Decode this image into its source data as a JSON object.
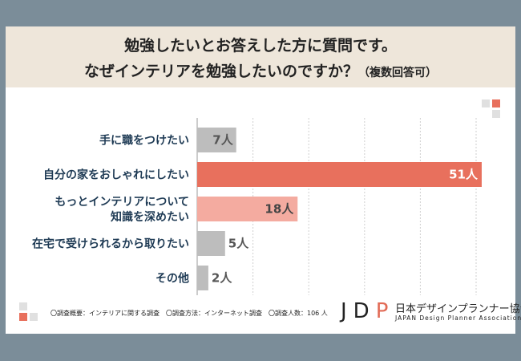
{
  "header": {
    "line1": "勉強したいとお答えした方に質問です。",
    "line2_main": "なぜインテリアを勉強したいのですか？",
    "line2_sub": "（複数回答可）"
  },
  "chart_data": {
    "type": "bar",
    "orientation": "horizontal",
    "title": "勉強したいとお答えした方に質問です。なぜインテリアを勉強したいのですか？（複数回答可）",
    "categories": [
      "手に職をつけたい",
      "自分の家をおしゃれにしたい",
      "もっとインテリアについて知識を深めたい",
      "在宅で受けられるから取りたい",
      "その他"
    ],
    "category_lines": [
      [
        "手に職をつけたい"
      ],
      [
        "自分の家をおしゃれにしたい"
      ],
      [
        "もっとインテリアについて",
        "知識を深めたい"
      ],
      [
        "在宅で受けられるから取りたい"
      ],
      [
        "その他"
      ]
    ],
    "values": [
      7,
      51,
      18,
      5,
      2
    ],
    "value_labels": [
      "7人",
      "51人",
      "18人",
      "5人",
      "2人"
    ],
    "unit": "人",
    "xlim": [
      0,
      55
    ],
    "grid": true,
    "colors": {
      "top": "#e8705d",
      "second": "#f4aba0",
      "other": "#bdbdbd",
      "grid": "#cfcfcf"
    }
  },
  "footer": {
    "note": "〇調査概要：インテリアに関する調査　〇調査方法：インターネット調査　〇調査人数：106 人"
  },
  "logo": {
    "mark_j": "J",
    "mark_d": "D",
    "mark_p": "P",
    "name_jp": "日本デザインプランナー協会",
    "name_en": "JAPAN Design Planner Association"
  }
}
